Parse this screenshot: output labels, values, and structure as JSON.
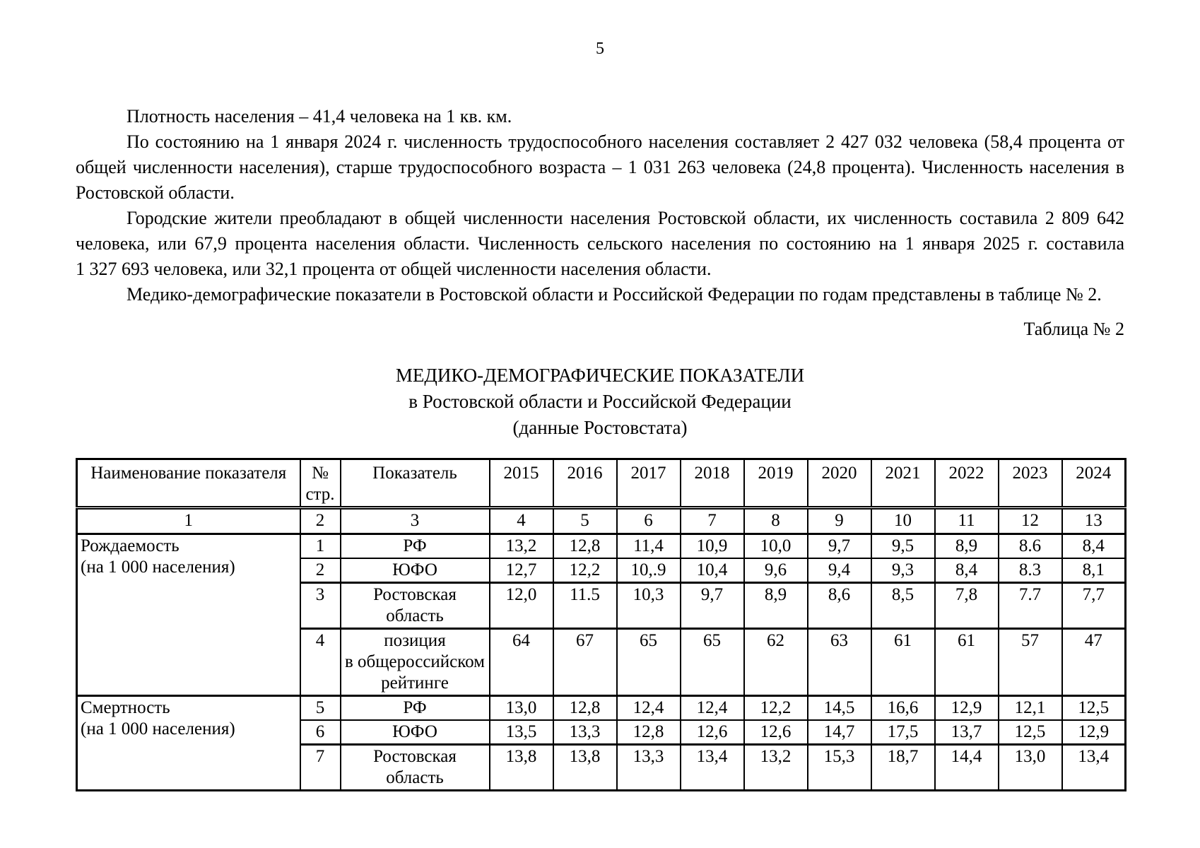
{
  "page": {
    "number": "5",
    "paragraphs": [
      "Плотность населения – 41,4 человека на 1 кв. км.",
      "По состоянию на 1 января 2024 г. численность трудоспособного населения составляет 2 427 032 человека (58,4 процента от общей численности населения), старше трудоспособного возраста – 1 031 263 человека (24,8 процента). Численность населения в Ростовской области.",
      "Городские жители преобладают в общей численности населения Ростовской области, их численность составила 2 809 642 человека, или 67,9 процента населения области. Численность сельского населения по состоянию на 1 января 2025 г. составила 1 327 693 человека, или 32,1 процента от общей численности населения области.",
      "Медико-демографические показатели в Ростовской области и Российской Федерации по годам представлены в таблице № 2."
    ],
    "table_caption": "Таблица № 2",
    "table_title_line1": "МЕДИКО-ДЕМОГРАФИЧЕСКИЕ ПОКАЗАТЕЛИ",
    "table_title_line2": "в Ростовской области и Российской Федерации",
    "table_title_line3": "(данные Ростовстата)"
  },
  "table": {
    "headers": {
      "name": "Наименование показателя",
      "row_no": "№\nстр.",
      "indicator": "Показатель",
      "years": [
        "2015",
        "2016",
        "2017",
        "2018",
        "2019",
        "2020",
        "2021",
        "2022",
        "2023",
        "2024"
      ]
    },
    "numbering": [
      "1",
      "2",
      "3",
      "4",
      "5",
      "6",
      "7",
      "8",
      "9",
      "10",
      "11",
      "12",
      "13"
    ],
    "groups": [
      {
        "name": "Рождаемость\n(на 1 000 населения)",
        "rows": [
          {
            "no": "1",
            "indicator": "РФ",
            "values": [
              "13,2",
              "12,8",
              "11,4",
              "10,9",
              "10,0",
              "9,7",
              "9,5",
              "8,9",
              "8.6",
              "8,4"
            ]
          },
          {
            "no": "2",
            "indicator": "ЮФО",
            "values": [
              "12,7",
              "12,2",
              "10,.9",
              "10,4",
              "9,6",
              "9,4",
              "9,3",
              "8,4",
              "8.3",
              "8,1"
            ]
          },
          {
            "no": "3",
            "indicator": "Ростовская\nобласть",
            "values": [
              "12,0",
              "11.5",
              "10,3",
              "9,7",
              "8,9",
              "8,6",
              "8,5",
              "7,8",
              "7.7",
              "7,7"
            ]
          },
          {
            "no": "4",
            "indicator": "позиция\nв общероссийском\nрейтинге",
            "values": [
              "64",
              "67",
              "65",
              "65",
              "62",
              "63",
              "61",
              "61",
              "57",
              "47"
            ]
          }
        ]
      },
      {
        "name": "Смертность\n(на 1 000 населения)",
        "rows": [
          {
            "no": "5",
            "indicator": "РФ",
            "values": [
              "13,0",
              "12,8",
              "12,4",
              "12,4",
              "12,2",
              "14,5",
              "16,6",
              "12,9",
              "12,1",
              "12,5"
            ]
          },
          {
            "no": "6",
            "indicator": "ЮФО",
            "values": [
              "13,5",
              "13,3",
              "12,8",
              "12,6",
              "12,6",
              "14,7",
              "17,5",
              "13,7",
              "12,5",
              "12,9"
            ]
          },
          {
            "no": "7",
            "indicator": "Ростовская\nобласть",
            "values": [
              "13,8",
              "13,8",
              "13,3",
              "13,4",
              "13,2",
              "15,3",
              "18,7",
              "14,4",
              "13,0",
              "13,4"
            ]
          }
        ]
      }
    ]
  }
}
